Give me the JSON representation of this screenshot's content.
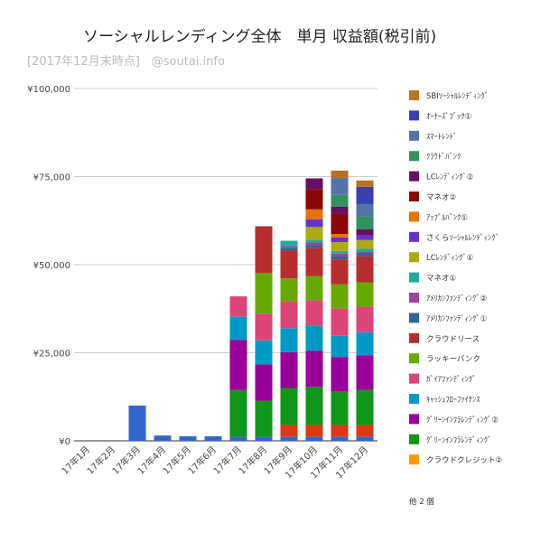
{
  "chart_data": {
    "type": "bar",
    "stacked": true,
    "title": "ソーシャルレンディング全体　単月 収益額(税引前)",
    "subtitle": "[2017年12月末時点]　@soutai.info",
    "xlabel": "",
    "ylabel": "",
    "ylim": [
      0,
      100000
    ],
    "yticks": [
      "¥0",
      "¥25,000",
      "¥50,000",
      "¥75,000",
      "¥100,000"
    ],
    "grid": true,
    "legend_position": "right",
    "categories": [
      "17年1月",
      "17年2月",
      "17年3月",
      "17年4月",
      "17年5月",
      "17年6月",
      "17年7月",
      "17年8月",
      "17年9月",
      "17年10月",
      "17年11月",
      "17年12月"
    ],
    "series": [
      {
        "name": "",
        "color": "#3366cc",
        "values": [
          0,
          0,
          10000,
          1500,
          1300,
          1300,
          1200,
          1200,
          1200,
          1200,
          1200,
          1200
        ]
      },
      {
        "name": "クラウドクレジット②",
        "color": "#ff9900",
        "values": [
          0,
          0,
          0,
          0,
          0,
          0,
          0,
          0,
          0,
          0,
          0,
          0
        ]
      },
      {
        "name": "",
        "color": "#dc3912",
        "values": [
          0,
          0,
          0,
          0,
          0,
          0,
          0,
          0,
          3300,
          3300,
          3300,
          3300
        ]
      },
      {
        "name": "ｸﾞﾘｰﾝｲﾝﾌﾗﾚﾝﾃﾞｨﾝｸﾞ",
        "color": "#109618",
        "values": [
          0,
          0,
          0,
          0,
          0,
          0,
          13200,
          10200,
          10500,
          10800,
          9600,
          10000
        ]
      },
      {
        "name": "ｸﾞﾘｰﾝｲﾝﾌﾗﾚﾝﾃﾞｨﾝｸﾞ②",
        "color": "#990099",
        "values": [
          0,
          0,
          0,
          0,
          0,
          0,
          14200,
          10300,
          10200,
          10300,
          9700,
          9800
        ]
      },
      {
        "name": "ｷｬｯｼｭﾌﾛｰﾌｧｲﾅﾝｽ",
        "color": "#0099c6",
        "values": [
          0,
          0,
          0,
          0,
          0,
          0,
          6700,
          6800,
          6800,
          7000,
          6000,
          6500
        ]
      },
      {
        "name": "ｶﾞｲｱﾌｧﾝﾃﾞｨﾝｸﾞ",
        "color": "#dd4477",
        "values": [
          0,
          0,
          0,
          0,
          0,
          0,
          5700,
          7600,
          7600,
          7300,
          7800,
          7300
        ]
      },
      {
        "name": "ラッキーバンク",
        "color": "#66aa00",
        "values": [
          0,
          0,
          0,
          0,
          0,
          0,
          0,
          11500,
          6500,
          6800,
          6800,
          6900
        ]
      },
      {
        "name": "クラウドリース",
        "color": "#b82e2e",
        "values": [
          0,
          0,
          0,
          0,
          0,
          0,
          0,
          13300,
          7900,
          8000,
          7100,
          7400
        ]
      },
      {
        "name": "ｱﾒﾘｶﾝﾌｧﾝﾃﾞｨﾝｸﾞ①",
        "color": "#316395",
        "values": [
          0,
          0,
          0,
          0,
          0,
          0,
          0,
          0,
          800,
          800,
          800,
          800
        ]
      },
      {
        "name": "ｱﾒﾘｶﾝﾌｧﾝﾃﾞｨﾝｸﾞ②",
        "color": "#994499",
        "values": [
          0,
          0,
          0,
          0,
          0,
          0,
          0,
          0,
          500,
          800,
          800,
          500
        ]
      },
      {
        "name": "マネオ①",
        "color": "#22aa99",
        "values": [
          0,
          0,
          0,
          0,
          0,
          0,
          0,
          0,
          1500,
          800,
          800,
          800
        ]
      },
      {
        "name": "LCﾚﾝﾃﾞｨﾝｸﾞ①",
        "color": "#aaaa11",
        "values": [
          0,
          0,
          0,
          0,
          0,
          0,
          0,
          0,
          0,
          3600,
          2500,
          2500
        ]
      },
      {
        "name": "さくらｿｰｼｬﾙﾚﾝﾃﾞｨﾝｸﾞ",
        "color": "#6633cc",
        "values": [
          0,
          0,
          0,
          0,
          0,
          0,
          0,
          0,
          0,
          2200,
          1300,
          1300
        ]
      },
      {
        "name": "ｱｯﾌﾟﾙﾊﾞﾝｸ①",
        "color": "#e67300",
        "values": [
          0,
          0,
          0,
          0,
          0,
          0,
          0,
          0,
          0,
          2800,
          1000,
          0
        ]
      },
      {
        "name": "マネオ②",
        "color": "#8b0707",
        "values": [
          0,
          0,
          0,
          0,
          0,
          0,
          0,
          0,
          0,
          5800,
          5800,
          0
        ]
      },
      {
        "name": "LCﾚﾝﾃﾞｨﾝｸﾞ②",
        "color": "#651067",
        "values": [
          0,
          0,
          0,
          0,
          0,
          0,
          0,
          0,
          0,
          3000,
          2000,
          1700
        ]
      },
      {
        "name": "ｸﾗｳﾄﾞﾊﾞﾝｸ",
        "color": "#329262",
        "values": [
          0,
          0,
          0,
          0,
          0,
          0,
          0,
          0,
          0,
          0,
          3300,
          3700
        ]
      },
      {
        "name": "ｽﾏｰﾄﾚﾝﾄﾞ",
        "color": "#5574a6",
        "values": [
          0,
          0,
          0,
          0,
          0,
          0,
          0,
          0,
          0,
          0,
          4800,
          3500
        ]
      },
      {
        "name": "ｵｰﾅｰｽﾞﾌﾞｯｸ①",
        "color": "#3b3eac",
        "values": [
          0,
          0,
          0,
          0,
          0,
          0,
          0,
          0,
          0,
          0,
          0,
          4900
        ]
      },
      {
        "name": "SBIｿｰｼｬﾙﾚﾝﾃﾞｨﾝｸﾞ",
        "color": "#b77322",
        "values": [
          0,
          0,
          0,
          0,
          0,
          0,
          0,
          0,
          0,
          0,
          2100,
          1800
        ]
      }
    ],
    "legend": [
      {
        "label": "SBIｿｰｼｬﾙﾚﾝﾃﾞｨﾝｸﾞ",
        "color": "#b77322"
      },
      {
        "label": "ｵｰﾅｰｽﾞﾌﾞｯｸ①",
        "color": "#3b3eac"
      },
      {
        "label": "ｽﾏｰﾄﾚﾝﾄﾞ",
        "color": "#5574a6"
      },
      {
        "label": "ｸﾗｳﾄﾞﾊﾞﾝｸ",
        "color": "#329262"
      },
      {
        "label": "LCﾚﾝﾃﾞｨﾝｸﾞ②",
        "color": "#651067"
      },
      {
        "label": "マネオ②",
        "color": "#8b0707"
      },
      {
        "label": "ｱｯﾌﾟﾙﾊﾞﾝｸ①",
        "color": "#e67300"
      },
      {
        "label": "さくらｿｰｼｬﾙﾚﾝﾃﾞｨﾝｸﾞ",
        "color": "#6633cc"
      },
      {
        "label": "LCﾚﾝﾃﾞｨﾝｸﾞ①",
        "color": "#aaaa11"
      },
      {
        "label": "マネオ①",
        "color": "#22aa99"
      },
      {
        "label": "ｱﾒﾘｶﾝﾌｧﾝﾃﾞｨﾝｸﾞ②",
        "color": "#994499"
      },
      {
        "label": "ｱﾒﾘｶﾝﾌｧﾝﾃﾞｨﾝｸﾞ①",
        "color": "#316395"
      },
      {
        "label": "クラウドリース",
        "color": "#b82e2e"
      },
      {
        "label": "ラッキーバンク",
        "color": "#66aa00"
      },
      {
        "label": "ｶﾞｲｱﾌｧﾝﾃﾞｨﾝｸﾞ",
        "color": "#dd4477"
      },
      {
        "label": "ｷｬｯｼｭﾌﾛｰﾌｧｲﾅﾝｽ",
        "color": "#0099c6"
      },
      {
        "label": "ｸﾞﾘｰﾝｲﾝﾌﾗﾚﾝﾃﾞｨﾝｸﾞ②",
        "color": "#990099"
      },
      {
        "label": "ｸﾞﾘｰﾝｲﾝﾌﾗﾚﾝﾃﾞｨﾝｸﾞ",
        "color": "#109618"
      },
      {
        "label": "クラウドクレジット②",
        "color": "#ff9900"
      }
    ],
    "legend_more": "他 2 個"
  }
}
